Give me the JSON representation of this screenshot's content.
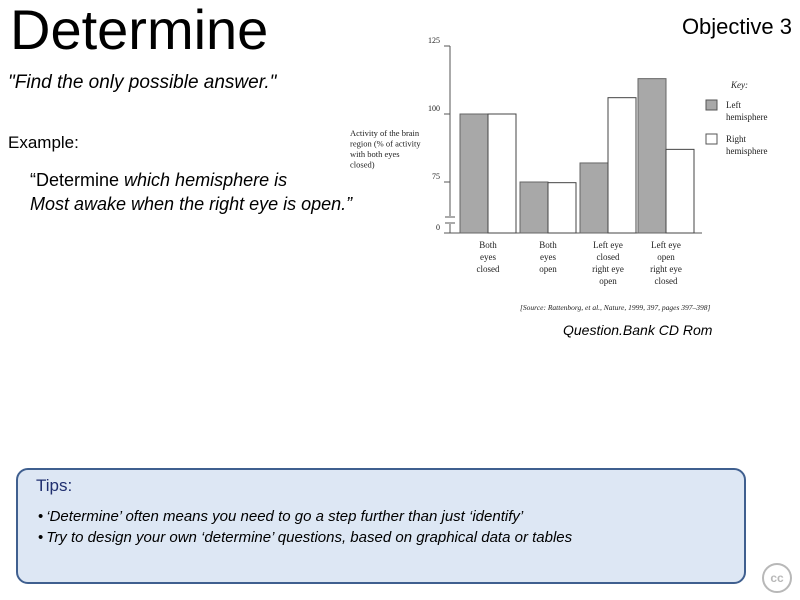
{
  "slide": {
    "title": "Determine",
    "objective": "Objective 3",
    "subtitle": "\"Find the only possible answer.\"",
    "example_label": "Example:",
    "example_keyword": "“Determine",
    "example_line1_rest": " which hemisphere is",
    "example_line2": "Most awake when the right eye is open.”",
    "source_note": "Question.Bank CD Rom",
    "cc_label": "cc"
  },
  "tips": {
    "title": "Tips:",
    "items": [
      "‘Determine’ often means you need to go a step further than just ‘identify’",
      "Try to design your own ‘determine’ questions, based on graphical data or tables"
    ]
  },
  "colors": {
    "left_bar": "#a8a8a8",
    "right_bar": "#ffffff",
    "tips_border": "#3f5f8f",
    "tips_bg": "#dde7f4"
  },
  "chart_data": {
    "type": "bar",
    "ylabel": "Activity of the brain region (% of activity with both eyes closed)",
    "yticks": [
      0,
      75,
      100,
      125
    ],
    "ylim": [
      0,
      125
    ],
    "axis_break": true,
    "categories": [
      [
        "Both",
        "eyes",
        "closed"
      ],
      [
        "Both",
        "eyes",
        "open"
      ],
      [
        "Left eye",
        "closed",
        "right eye",
        "open"
      ],
      [
        "Left eye",
        "open",
        "right eye",
        "closed"
      ]
    ],
    "series": [
      {
        "name": "Left hemisphere",
        "values": [
          100,
          75,
          82,
          113
        ]
      },
      {
        "name": "Right hemisphere",
        "values": [
          100,
          74,
          106,
          87
        ]
      }
    ],
    "legend_title": "Key:",
    "legend_labels": [
      [
        "Left",
        "hemisphere"
      ],
      [
        "Right",
        "hemisphere"
      ]
    ],
    "legend_position": "top-right",
    "source": "[Source: Rattenborg, et al., Nature, 1999, 397, pages 397–398]"
  }
}
